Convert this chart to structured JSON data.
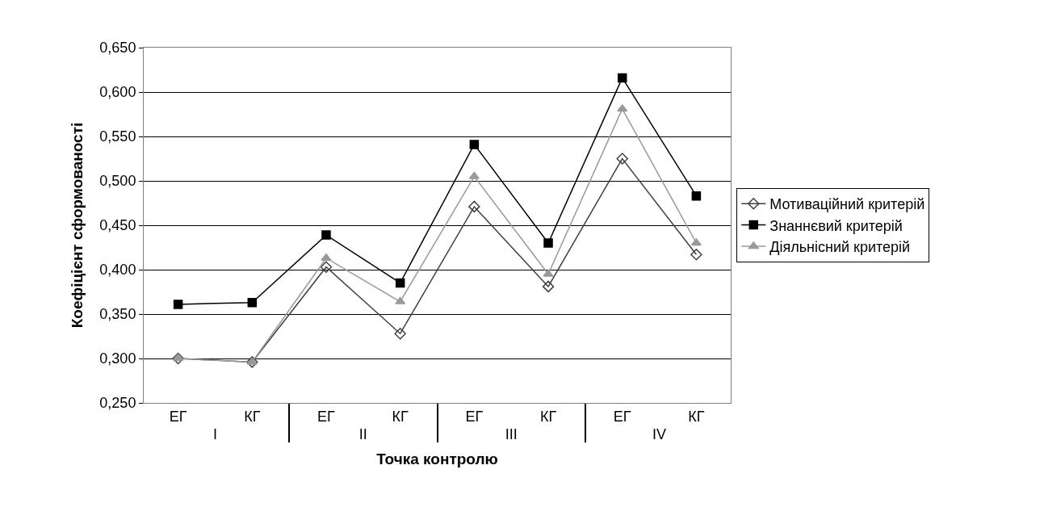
{
  "chart_data": {
    "type": "line",
    "xlabel": "Точка контролю",
    "ylabel": "Коефіцієнт сформованості",
    "categories": [
      "ЕГ",
      "КГ",
      "ЕГ",
      "КГ",
      "ЕГ",
      "КГ",
      "ЕГ",
      "КГ"
    ],
    "annotations": [
      "I",
      "II",
      "III",
      "IV"
    ],
    "series": [
      {
        "name": "Мотиваційний критерій",
        "color": "#404040",
        "marker": "diamond",
        "values": [
          0.3,
          0.296,
          0.403,
          0.328,
          0.471,
          0.381,
          0.525,
          0.417
        ]
      },
      {
        "name": "Знаннєвий критерій",
        "color": "#000000",
        "marker": "square",
        "values": [
          0.361,
          0.363,
          0.439,
          0.385,
          0.541,
          0.43,
          0.616,
          0.483
        ]
      },
      {
        "name": "Діяльнісний критерій",
        "color": "#999999",
        "marker": "triangle",
        "values": [
          0.3,
          0.296,
          0.413,
          0.364,
          0.505,
          0.395,
          0.581,
          0.43
        ]
      }
    ],
    "ylim": [
      0.25,
      0.65
    ],
    "yticks": [
      {
        "value": 0.25,
        "label": "0,250"
      },
      {
        "value": 0.3,
        "label": "0,300"
      },
      {
        "value": 0.35,
        "label": "0,350"
      },
      {
        "value": 0.4,
        "label": "0,400"
      },
      {
        "value": 0.45,
        "label": "0,450"
      },
      {
        "value": 0.5,
        "label": "0,500"
      },
      {
        "value": 0.55,
        "label": "0,550"
      },
      {
        "value": 0.6,
        "label": "0,600"
      },
      {
        "value": 0.65,
        "label": "0,650"
      }
    ],
    "grid": "y",
    "legend": "right"
  }
}
